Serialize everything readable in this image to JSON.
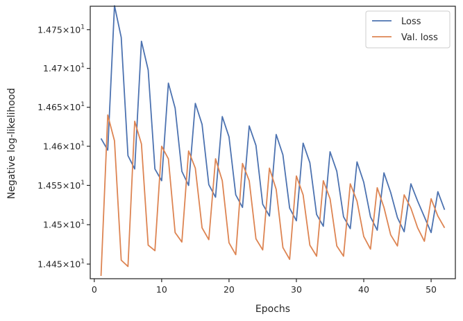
{
  "chart_data": {
    "type": "line",
    "xlabel": "Epochs",
    "ylabel": "Negative log-likelihood",
    "xlim": [
      -0.6,
      53.6
    ],
    "ylim": [
      14.4315,
      14.7803
    ],
    "x_ticks": [
      0,
      10,
      20,
      30,
      40,
      50
    ],
    "x_tick_labels": [
      "0",
      "10",
      "20",
      "30",
      "40",
      "50"
    ],
    "y_ticks": [
      14.45,
      14.5,
      14.55,
      14.6,
      14.65,
      14.7,
      14.75
    ],
    "y_tick_labels": [
      {
        "mantissa": "1.445",
        "times": "×",
        "base": "10",
        "exp": "1"
      },
      {
        "mantissa": "1.45",
        "times": "×",
        "base": "10",
        "exp": "1"
      },
      {
        "mantissa": "1.455",
        "times": "×",
        "base": "10",
        "exp": "1"
      },
      {
        "mantissa": "1.46",
        "times": "×",
        "base": "10",
        "exp": "1"
      },
      {
        "mantissa": "1.465",
        "times": "×",
        "base": "10",
        "exp": "1"
      },
      {
        "mantissa": "1.47",
        "times": "×",
        "base": "10",
        "exp": "1"
      },
      {
        "mantissa": "1.475",
        "times": "×",
        "base": "10",
        "exp": "1"
      }
    ],
    "legend_position": "top-right",
    "grid": false,
    "log_scale_y": true,
    "x": [
      1,
      2,
      3,
      4,
      5,
      6,
      7,
      8,
      9,
      10,
      11,
      12,
      13,
      14,
      15,
      16,
      17,
      18,
      19,
      20,
      21,
      22,
      23,
      24,
      25,
      26,
      27,
      28,
      29,
      30,
      31,
      32,
      33,
      34,
      35,
      36,
      37,
      38,
      39,
      40,
      41,
      42,
      43,
      44,
      45,
      46,
      47,
      48,
      49,
      50,
      51,
      52
    ],
    "series": [
      {
        "name": "Loss",
        "color": "#4c72b0",
        "values": [
          14.61,
          14.595,
          14.781,
          14.74,
          14.588,
          14.571,
          14.735,
          14.698,
          14.571,
          14.556,
          14.681,
          14.649,
          14.568,
          14.55,
          14.655,
          14.628,
          14.551,
          14.535,
          14.638,
          14.612,
          14.538,
          14.522,
          14.626,
          14.601,
          14.526,
          14.511,
          14.615,
          14.589,
          14.521,
          14.505,
          14.604,
          14.579,
          14.513,
          14.498,
          14.593,
          14.568,
          14.51,
          14.495,
          14.58,
          14.554,
          14.51,
          14.493,
          14.566,
          14.541,
          14.509,
          14.491,
          14.552,
          14.53,
          14.51,
          14.49,
          14.542,
          14.519
        ]
      },
      {
        "name": "Val. loss",
        "color": "#dd8452",
        "values": [
          14.435,
          14.64,
          14.607,
          14.455,
          14.447,
          14.632,
          14.603,
          14.474,
          14.467,
          14.6,
          14.584,
          14.49,
          14.478,
          14.594,
          14.572,
          14.496,
          14.481,
          14.584,
          14.556,
          14.477,
          14.462,
          14.578,
          14.556,
          14.482,
          14.468,
          14.572,
          14.545,
          14.471,
          14.456,
          14.562,
          14.538,
          14.474,
          14.46,
          14.556,
          14.533,
          14.473,
          14.46,
          14.552,
          14.53,
          14.485,
          14.469,
          14.547,
          14.522,
          14.487,
          14.473,
          14.538,
          14.521,
          14.496,
          14.479,
          14.533,
          14.511,
          14.496
        ]
      }
    ]
  }
}
